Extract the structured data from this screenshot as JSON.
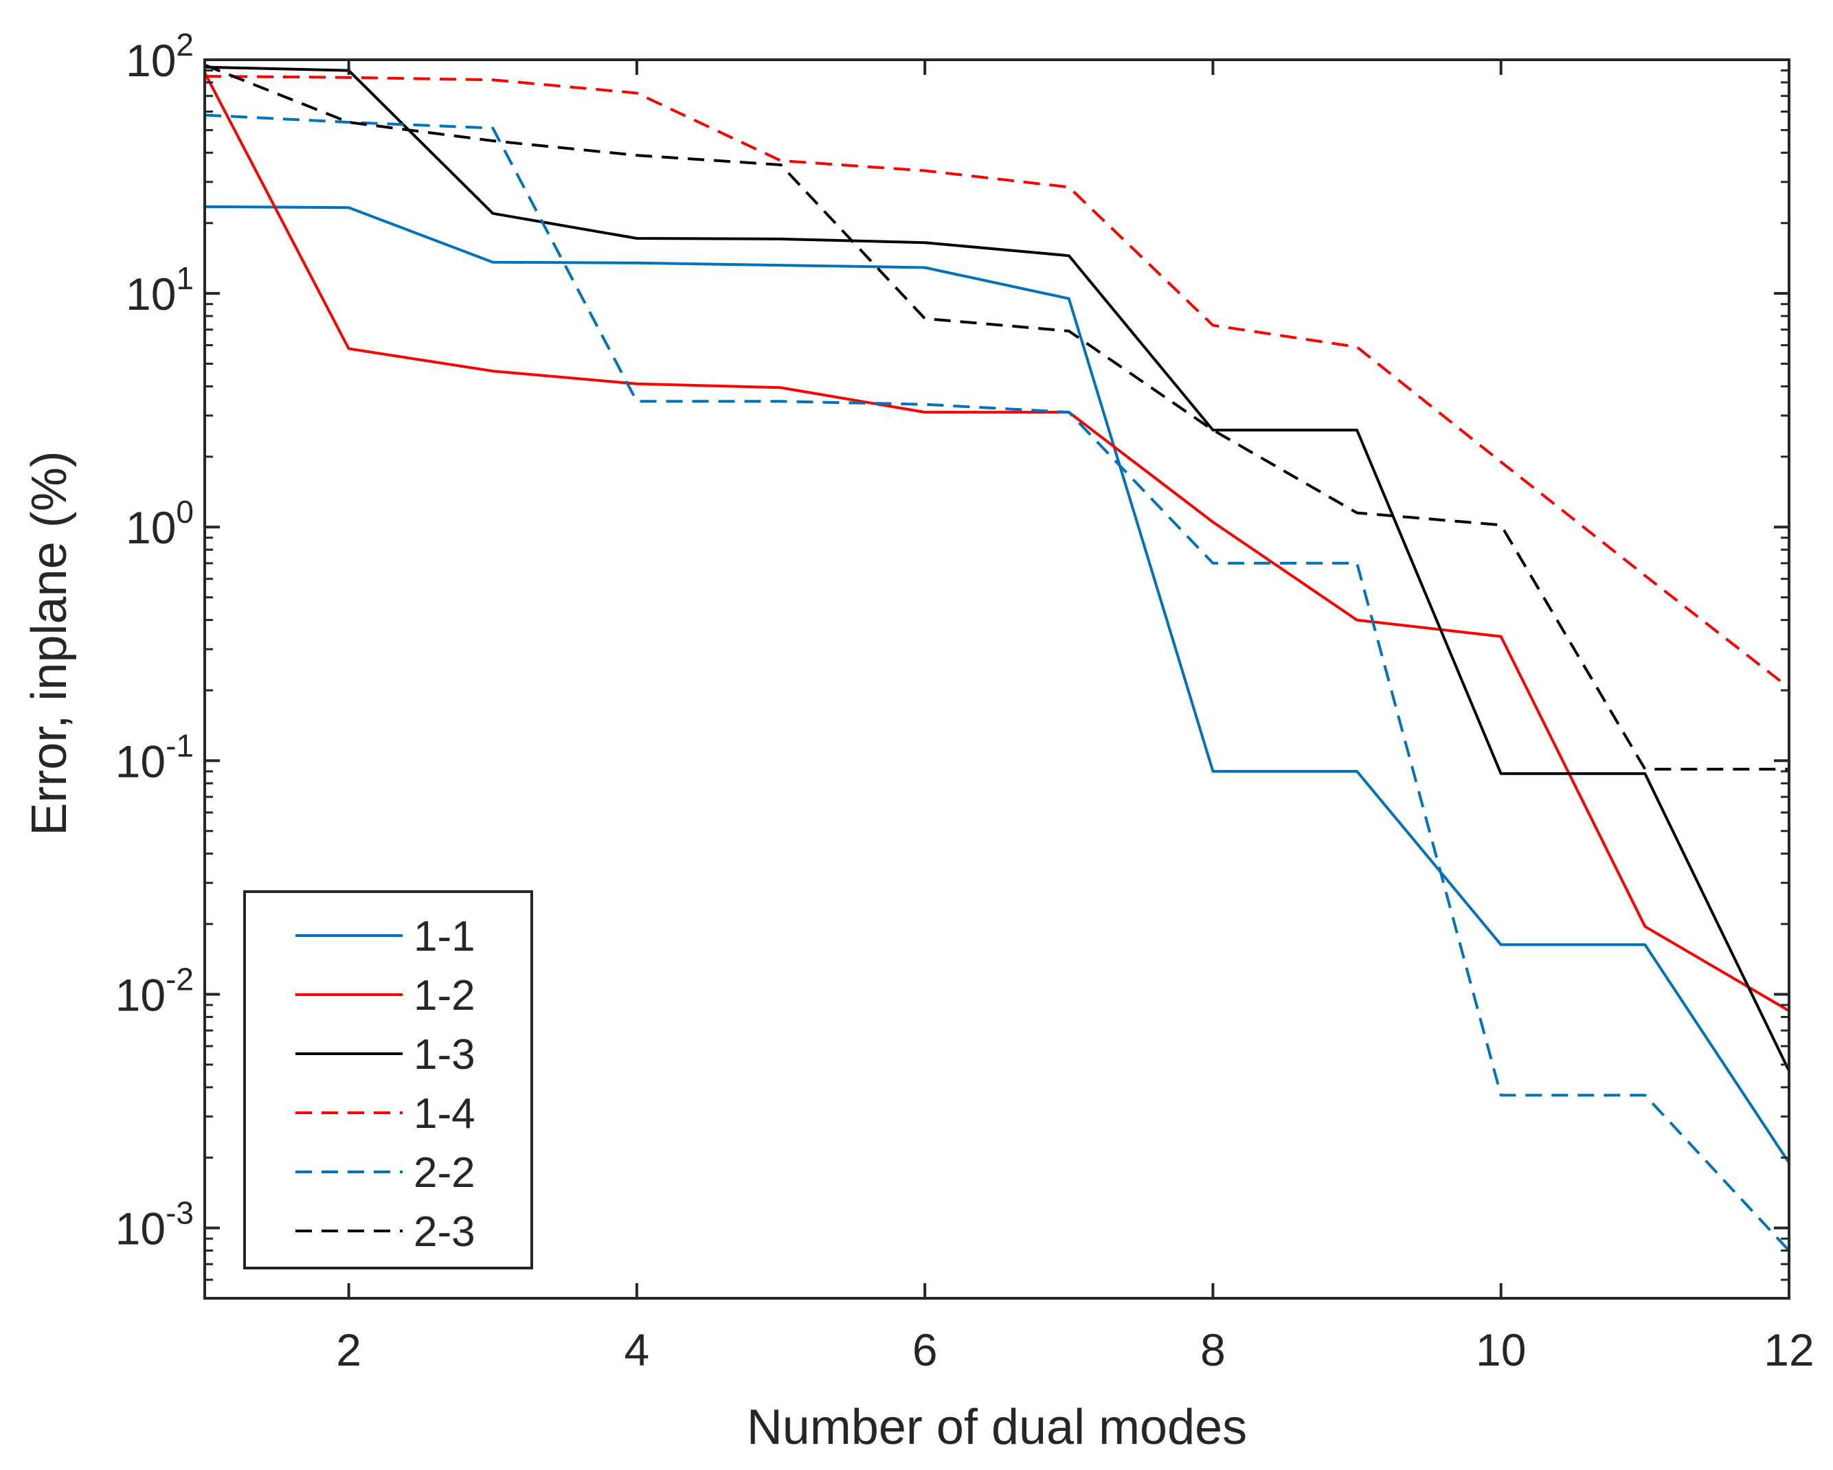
{
  "chart_data": {
    "type": "line",
    "xlabel": "Number of dual modes",
    "ylabel": "Error, inplane (%)",
    "xlim": [
      1,
      12
    ],
    "ylim": [
      0.0005,
      100
    ],
    "yscale": "log",
    "xticks": [
      {
        "value": 2,
        "label": "2"
      },
      {
        "value": 4,
        "label": "4"
      },
      {
        "value": 6,
        "label": "6"
      },
      {
        "value": 8,
        "label": "8"
      },
      {
        "value": 10,
        "label": "10"
      },
      {
        "value": 12,
        "label": "12"
      }
    ],
    "yticks": [
      {
        "value": 0.001,
        "base": "10",
        "exp": "-3"
      },
      {
        "value": 0.01,
        "base": "10",
        "exp": "-2"
      },
      {
        "value": 0.1,
        "base": "10",
        "exp": "-1"
      },
      {
        "value": 1,
        "base": "10",
        "exp": "0"
      },
      {
        "value": 10,
        "base": "10",
        "exp": "1"
      },
      {
        "value": 100,
        "base": "10",
        "exp": "2"
      }
    ],
    "legend_position": "bottom-left",
    "x": [
      1,
      2,
      3,
      4,
      5,
      6,
      7,
      8,
      9,
      10,
      11,
      12
    ],
    "series": [
      {
        "name": "1-1",
        "color": "#0072BD",
        "dash": "solid",
        "values": [
          23.5,
          23.3,
          13.6,
          13.5,
          13.2,
          12.9,
          9.5,
          0.09,
          0.09,
          0.0163,
          0.0163,
          0.0019
        ]
      },
      {
        "name": "1-2",
        "color": "#FF0000",
        "dash": "solid",
        "values": [
          88,
          5.8,
          4.65,
          4.1,
          3.95,
          3.1,
          3.1,
          1.05,
          0.4,
          0.34,
          0.0195,
          0.0085
        ]
      },
      {
        "name": "1-3",
        "color": "#000000",
        "dash": "solid",
        "values": [
          93,
          90,
          22,
          17.2,
          17.1,
          16.5,
          14.5,
          2.6,
          2.6,
          0.088,
          0.088,
          0.0047
        ]
      },
      {
        "name": "1-4",
        "color": "#FF0000",
        "dash": "dashed",
        "values": [
          85,
          84,
          82,
          72,
          37,
          33.5,
          28.5,
          7.3,
          5.9,
          1.9,
          0.62,
          0.205
        ]
      },
      {
        "name": "2-2",
        "color": "#0072BD",
        "dash": "dashed",
        "values": [
          58,
          54,
          51,
          3.45,
          3.45,
          3.35,
          3.1,
          0.7,
          0.7,
          0.0037,
          0.0037,
          0.0008
        ]
      },
      {
        "name": "2-3",
        "color": "#000000",
        "dash": "dashed",
        "values": [
          95,
          54,
          45,
          39,
          35.5,
          7.8,
          6.9,
          2.6,
          1.15,
          1.02,
          0.092,
          0.092
        ]
      }
    ]
  }
}
